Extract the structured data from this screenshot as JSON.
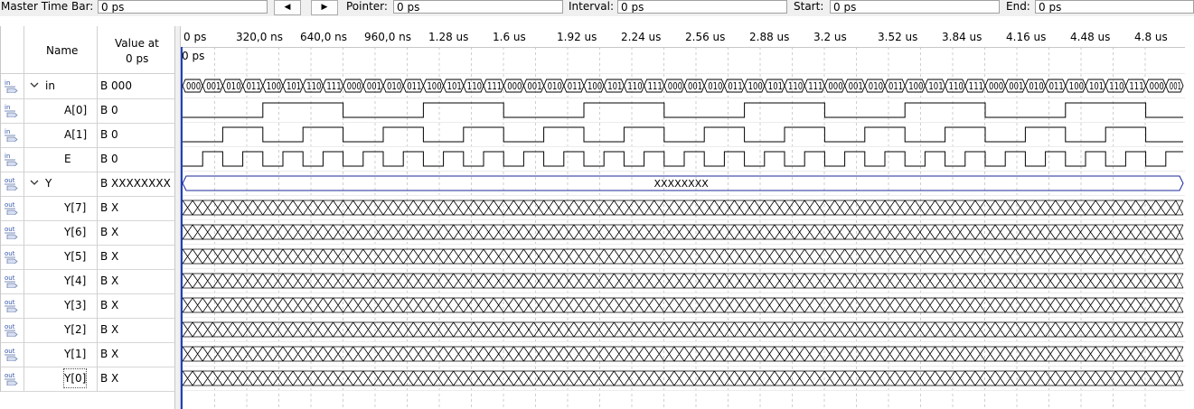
{
  "toolbar": {
    "master_time_bar": {
      "label": "Master Time Bar:",
      "value": "0 ps"
    },
    "prev_icon": "triangle-left-icon",
    "next_icon": "triangle-right-icon",
    "pointer": {
      "label": "Pointer:",
      "value": "0 ps"
    },
    "interval": {
      "label": "Interval:",
      "value": "0 ps"
    },
    "start": {
      "label": "Start:",
      "value": "0 ps"
    },
    "end": {
      "label": "End:",
      "value": "0 ps"
    }
  },
  "columns": {
    "name": "Name",
    "value_line1": "Value at",
    "value_line2": "0 ps"
  },
  "ruler": {
    "ticks": [
      "0 ps",
      "320,0 ns",
      "640,0 ns",
      "960,0 ns",
      "1.28 us",
      "1.6 us",
      "1.92 us",
      "2.24 us",
      "2.56 us",
      "2.88 us",
      "3.2 us",
      "3.52 us",
      "3.84 us",
      "4.16 us",
      "4.48 us",
      "4.8 us"
    ],
    "cursor_label": "0 ps"
  },
  "signals": [
    {
      "name": "in",
      "value": "B 000",
      "kind": "input",
      "group": true
    },
    {
      "name": "A[0]",
      "value": "B 0",
      "kind": "input",
      "group": false
    },
    {
      "name": "A[1]",
      "value": "B 0",
      "kind": "input",
      "group": false
    },
    {
      "name": "E",
      "value": "B 0",
      "kind": "input",
      "group": false
    },
    {
      "name": "Y",
      "value": "B XXXXXXXX",
      "kind": "output",
      "group": true
    },
    {
      "name": "Y[7]",
      "value": "B X",
      "kind": "output",
      "group": false
    },
    {
      "name": "Y[6]",
      "value": "B X",
      "kind": "output",
      "group": false
    },
    {
      "name": "Y[5]",
      "value": "B X",
      "kind": "output",
      "group": false
    },
    {
      "name": "Y[4]",
      "value": "B X",
      "kind": "output",
      "group": false
    },
    {
      "name": "Y[3]",
      "value": "B X",
      "kind": "output",
      "group": false
    },
    {
      "name": "Y[2]",
      "value": "B X",
      "kind": "output",
      "group": false
    },
    {
      "name": "Y[1]",
      "value": "B X",
      "kind": "output",
      "group": false
    },
    {
      "name": "Y[0]",
      "value": "B X",
      "kind": "output",
      "group": false
    }
  ],
  "bus_labels": {
    "in": [
      "000",
      "001",
      "010",
      "011",
      "100",
      "101",
      "110",
      "111"
    ],
    "Y": "XXXXXXXX"
  },
  "icons": {
    "input": "input-pin-icon",
    "output": "output-pin-icon",
    "expand": "chevron-down-icon"
  }
}
